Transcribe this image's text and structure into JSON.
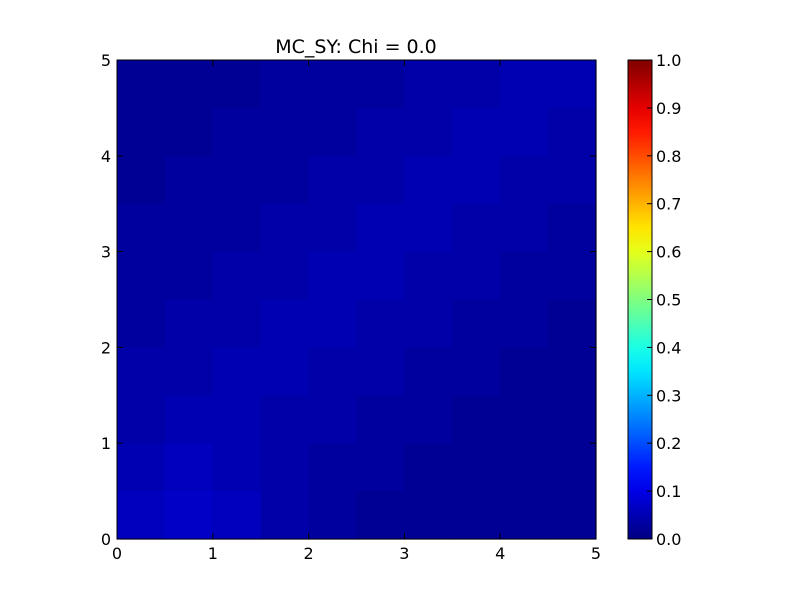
{
  "chart_data": {
    "type": "heatmap",
    "title": "MC_SY: Chi = 0.0",
    "xlabel": "",
    "ylabel": "",
    "xlim": [
      0,
      5
    ],
    "ylim": [
      0,
      5
    ],
    "x_ticks": [
      "0",
      "1",
      "2",
      "3",
      "4",
      "5"
    ],
    "y_ticks": [
      "0",
      "1",
      "2",
      "3",
      "4",
      "5"
    ],
    "colormap": "jet",
    "clim": [
      0,
      1
    ],
    "colorbar_ticks": [
      "0.0",
      "0.1",
      "0.2",
      "0.3",
      "0.4",
      "0.5",
      "0.6",
      "0.7",
      "0.8",
      "0.9",
      "1.0"
    ],
    "grid": false,
    "field": {
      "rows": [
        [
          0.02,
          0.02,
          0.02,
          0.03,
          0.03,
          0.03,
          0.04,
          0.04,
          0.05,
          0.05
        ],
        [
          0.02,
          0.02,
          0.03,
          0.03,
          0.03,
          0.04,
          0.04,
          0.05,
          0.05,
          0.04
        ],
        [
          0.02,
          0.03,
          0.03,
          0.03,
          0.04,
          0.04,
          0.05,
          0.05,
          0.04,
          0.04
        ],
        [
          0.03,
          0.03,
          0.03,
          0.04,
          0.04,
          0.05,
          0.05,
          0.04,
          0.04,
          0.03
        ],
        [
          0.03,
          0.03,
          0.04,
          0.04,
          0.05,
          0.05,
          0.04,
          0.04,
          0.03,
          0.03
        ],
        [
          0.03,
          0.04,
          0.04,
          0.05,
          0.05,
          0.04,
          0.04,
          0.03,
          0.03,
          0.02
        ],
        [
          0.04,
          0.04,
          0.05,
          0.05,
          0.04,
          0.04,
          0.03,
          0.03,
          0.02,
          0.02
        ],
        [
          0.04,
          0.05,
          0.05,
          0.04,
          0.04,
          0.03,
          0.03,
          0.02,
          0.02,
          0.02
        ],
        [
          0.05,
          0.06,
          0.05,
          0.04,
          0.03,
          0.03,
          0.02,
          0.02,
          0.02,
          0.02
        ],
        [
          0.06,
          0.07,
          0.06,
          0.04,
          0.03,
          0.02,
          0.02,
          0.02,
          0.02,
          0.02
        ]
      ]
    }
  }
}
